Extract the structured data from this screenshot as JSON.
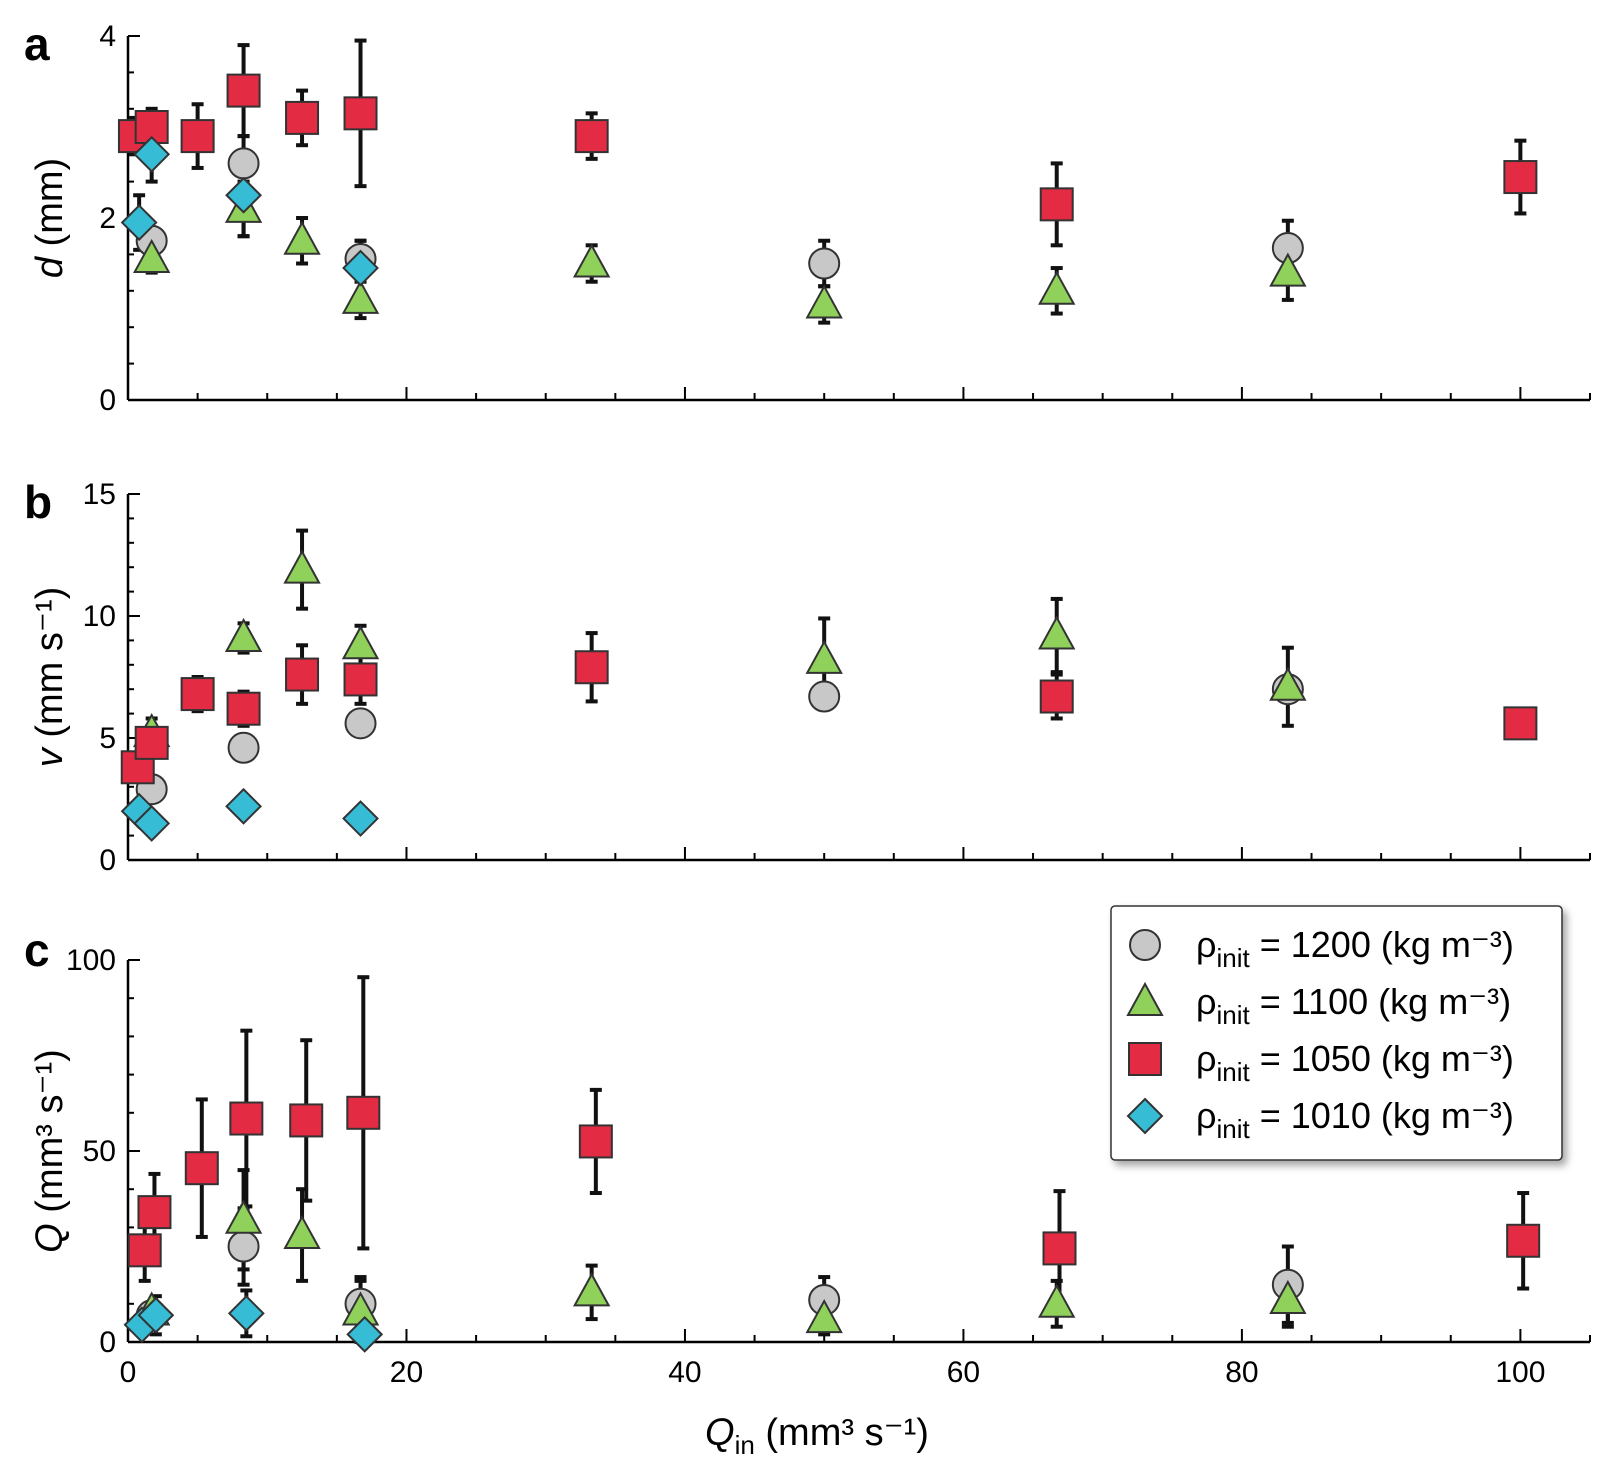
{
  "chart_data": [
    {
      "panel": "a",
      "type": "scatter",
      "ylabel_var": "d",
      "ylabel_unit": " (mm)",
      "ylim": [
        0,
        4
      ],
      "yticks": [
        "0",
        "2",
        "4"
      ],
      "xlim": [
        0,
        105
      ],
      "series": [
        {
          "name": "1200",
          "points": [
            [
              1.7,
              1.75,
              0.07
            ],
            [
              8.3,
              2.6,
              0.3
            ],
            [
              16.7,
              1.55,
              0.2
            ],
            [
              50,
              1.5,
              0.25
            ],
            [
              83.3,
              1.67,
              0.3
            ]
          ]
        },
        {
          "name": "1100",
          "points": [
            [
              1.7,
              1.55,
              0.15
            ],
            [
              8.3,
              2.1,
              0.3
            ],
            [
              12.5,
              1.75,
              0.25
            ],
            [
              16.7,
              1.1,
              0.2
            ],
            [
              33.3,
              1.5,
              0.2
            ],
            [
              50,
              1.05,
              0.2
            ],
            [
              66.7,
              1.2,
              0.25
            ],
            [
              83.3,
              1.4,
              0.3
            ]
          ]
        },
        {
          "name": "1050",
          "points": [
            [
              0.5,
              2.9,
              0.2
            ],
            [
              1.7,
              3.0,
              0.2
            ],
            [
              5,
              2.9,
              0.35
            ],
            [
              8.3,
              3.4,
              0.5
            ],
            [
              12.5,
              3.1,
              0.3
            ],
            [
              16.7,
              3.15,
              0.8
            ],
            [
              33.3,
              2.9,
              0.25
            ],
            [
              66.7,
              2.15,
              0.45
            ],
            [
              100,
              2.45,
              0.4
            ]
          ]
        },
        {
          "name": "1010",
          "points": [
            [
              0.8,
              1.95,
              0.3
            ],
            [
              1.7,
              2.7,
              0.3
            ],
            [
              8.3,
              2.25,
              0.45
            ],
            [
              16.7,
              1.45,
              0.3
            ]
          ]
        }
      ]
    },
    {
      "panel": "b",
      "type": "scatter",
      "ylabel_var": "v",
      "ylabel_unit": " (mm s⁻¹)",
      "ylim": [
        0,
        15
      ],
      "yticks": [
        "0",
        "5",
        "10",
        "15"
      ],
      "xlim": [
        0,
        105
      ],
      "series": [
        {
          "name": "1200",
          "points": [
            [
              1.7,
              2.9,
              0
            ],
            [
              8.3,
              4.6,
              0
            ],
            [
              16.7,
              5.6,
              0
            ],
            [
              50,
              6.7,
              0
            ],
            [
              83.3,
              7.0,
              0
            ]
          ]
        },
        {
          "name": "1100",
          "points": [
            [
              1.7,
              5.2,
              0.6
            ],
            [
              8.3,
              9.1,
              0.6
            ],
            [
              12.5,
              11.9,
              1.6
            ],
            [
              16.7,
              8.8,
              0.8
            ],
            [
              50,
              8.2,
              1.7
            ],
            [
              66.7,
              9.2,
              1.5
            ],
            [
              83.3,
              7.1,
              1.6
            ]
          ]
        },
        {
          "name": "1050",
          "points": [
            [
              0.7,
              3.8,
              0
            ],
            [
              1.7,
              4.8,
              0
            ],
            [
              5,
              6.8,
              0.7
            ],
            [
              8.3,
              6.2,
              0.7
            ],
            [
              12.5,
              7.6,
              1.2
            ],
            [
              16.7,
              7.4,
              1.0
            ],
            [
              33.3,
              7.9,
              1.4
            ],
            [
              66.7,
              6.7,
              0.9
            ],
            [
              100,
              5.6,
              0.5
            ]
          ]
        },
        {
          "name": "1010",
          "points": [
            [
              0.8,
              2.0,
              0
            ],
            [
              1.7,
              1.5,
              0
            ],
            [
              8.3,
              2.2,
              0
            ],
            [
              16.7,
              1.7,
              0
            ]
          ]
        }
      ]
    },
    {
      "panel": "c",
      "type": "scatter",
      "ylabel_var": "Q",
      "ylabel_unit": " (mm³ s⁻¹)",
      "ylim": [
        0,
        100
      ],
      "yticks": [
        "0",
        "50",
        "100"
      ],
      "xlim": [
        0,
        105
      ],
      "xticks": [
        "0",
        "20",
        "40",
        "60",
        "80",
        "100"
      ],
      "series": [
        {
          "name": "1200",
          "points": [
            [
              1.7,
              7,
              0
            ],
            [
              8.3,
              25,
              10
            ],
            [
              16.7,
              10,
              7
            ],
            [
              50,
              11,
              6
            ],
            [
              83.3,
              15,
              10
            ]
          ]
        },
        {
          "name": "1100",
          "points": [
            [
              1.7,
              8,
              0
            ],
            [
              8.3,
              32,
              13
            ],
            [
              12.5,
              28,
              12
            ],
            [
              16.7,
              8,
              8
            ],
            [
              33.3,
              13,
              7
            ],
            [
              50,
              6,
              4
            ],
            [
              66.7,
              10,
              6
            ],
            [
              83.3,
              11,
              7
            ]
          ]
        },
        {
          "name": "1050",
          "points": [
            [
              1.2,
              24,
              8
            ],
            [
              1.9,
              34,
              10
            ],
            [
              5.3,
              45.5,
              18
            ],
            [
              8.5,
              58.5,
              23
            ],
            [
              12.8,
              58,
              21
            ],
            [
              16.9,
              60,
              35.5
            ],
            [
              33.6,
              52.5,
              13.5
            ],
            [
              66.9,
              24.5,
              15
            ],
            [
              100.2,
              26.5,
              12.5
            ]
          ]
        },
        {
          "name": "1010",
          "points": [
            [
              1.0,
              4.5,
              0
            ],
            [
              2.0,
              7,
              5
            ],
            [
              8.5,
              7.5,
              6
            ],
            [
              17.0,
              2,
              0
            ]
          ]
        }
      ]
    }
  ],
  "xlabel_var": "Q",
  "xlabel_sub": "in",
  "xlabel_unit": " (mm³ s⁻¹)",
  "legend": [
    {
      "key": "1200",
      "prefix": "ρ",
      "sub": "init",
      "text": " = 1200 (kg m⁻³)",
      "marker": "circle",
      "color": "#c8c8c8"
    },
    {
      "key": "1100",
      "prefix": "ρ",
      "sub": "init",
      "text": " = 1100 (kg m⁻³)",
      "marker": "triangle",
      "color": "#8fd15a"
    },
    {
      "key": "1050",
      "prefix": "ρ",
      "sub": "init",
      "text": " = 1050 (kg m⁻³)",
      "marker": "square",
      "color": "#e32b44"
    },
    {
      "key": "1010",
      "prefix": "ρ",
      "sub": "init",
      "text": " = 1010 (kg m⁻³)",
      "marker": "diamond",
      "color": "#37bcd6"
    }
  ]
}
